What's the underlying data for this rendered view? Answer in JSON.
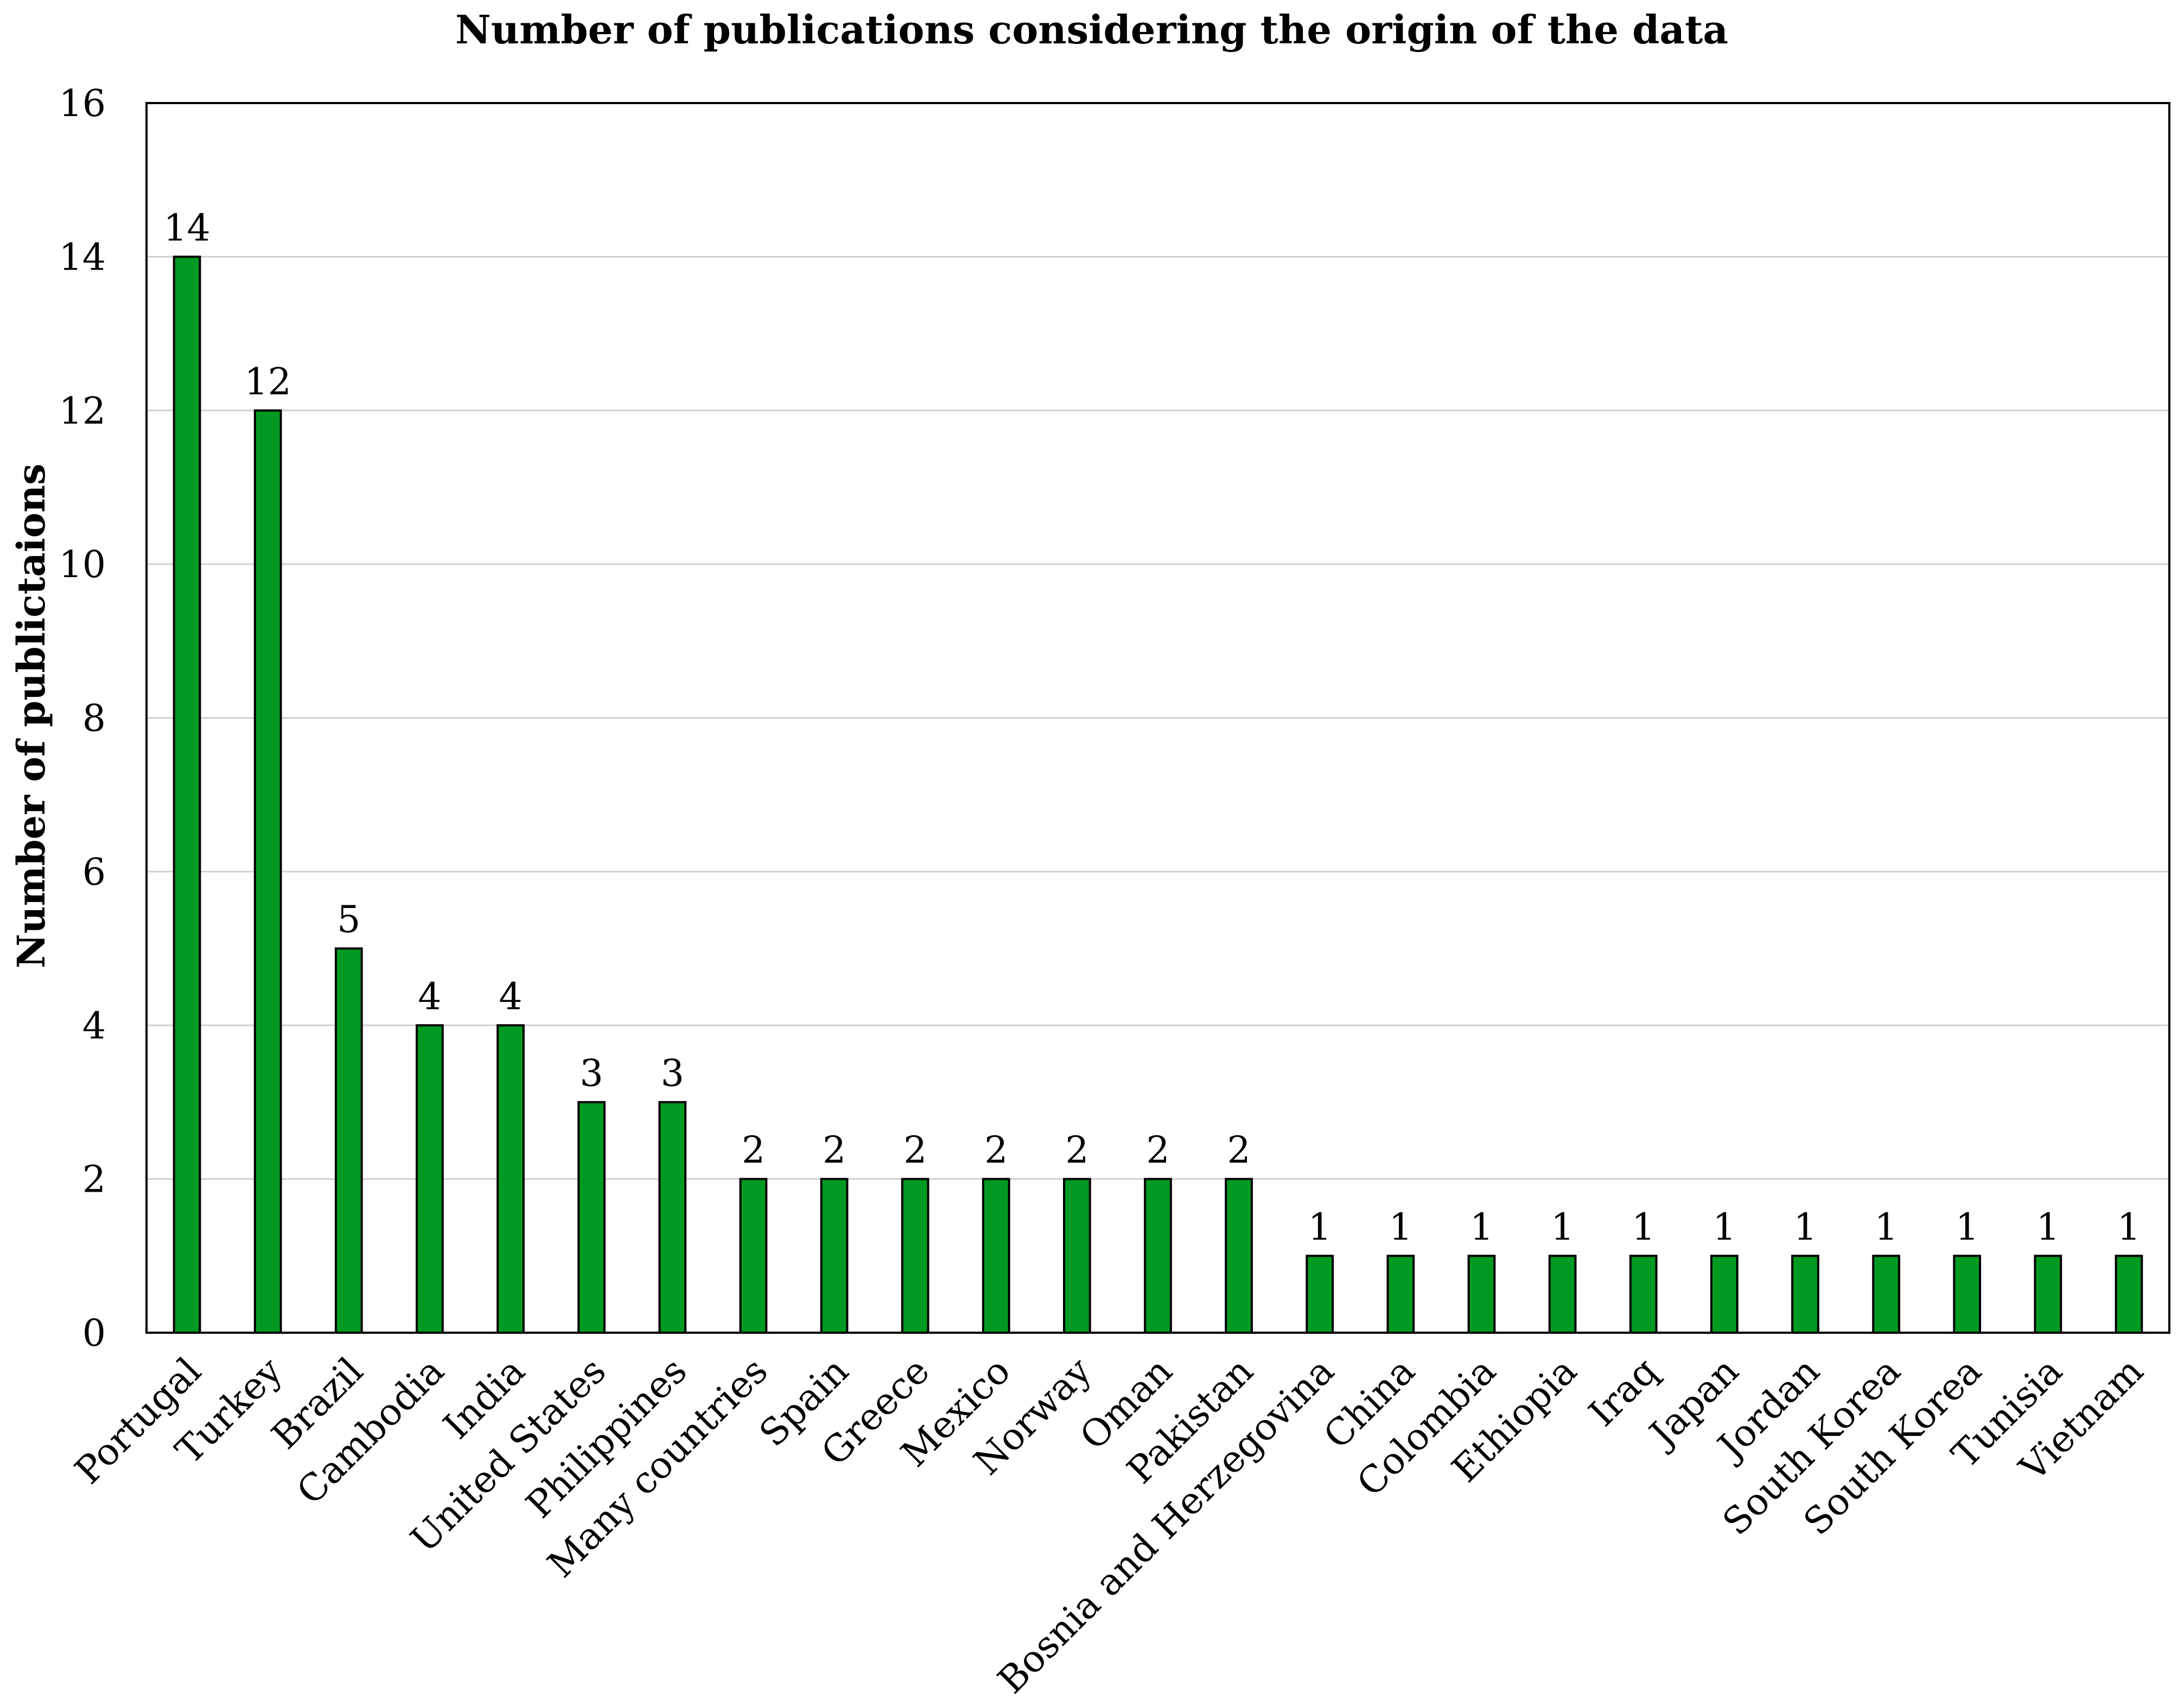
{
  "chart_data": {
    "type": "bar",
    "title": "Number of publications considering the origin of the data",
    "xlabel": "",
    "ylabel": "Number of publictaions",
    "ylim": [
      0,
      16
    ],
    "yticks": [
      0,
      2,
      4,
      6,
      8,
      10,
      12,
      14,
      16
    ],
    "grid": true,
    "legend": "none",
    "bar_color": "#009A22",
    "bar_edge_color": "#000000",
    "categories": [
      "Portugal",
      "Turkey",
      "Brazil",
      "Cambodia",
      "India",
      "United States",
      "Philippines",
      "Many countries",
      "Spain",
      "Greece",
      "Mexico",
      "Norway",
      "Oman",
      "Pakistan",
      "Bosnia and Herzegovina",
      "China",
      "Colombia",
      "Ethiopia",
      "Iraq",
      "Japan",
      "Jordan",
      "South Korea",
      "South Korea",
      "Tunisia",
      "Vietnam"
    ],
    "values": [
      14,
      12,
      5,
      4,
      4,
      3,
      3,
      2,
      2,
      2,
      2,
      2,
      2,
      2,
      1,
      1,
      1,
      1,
      1,
      1,
      1,
      1,
      1,
      1,
      1
    ],
    "data_labels": [
      "14",
      "12",
      "5",
      "4",
      "4",
      "3",
      "3",
      "2",
      "2",
      "2",
      "2",
      "2",
      "2",
      "2",
      "1",
      "1",
      "1",
      "1",
      "1",
      "1",
      "1",
      "1",
      "1",
      "1",
      "1"
    ]
  }
}
